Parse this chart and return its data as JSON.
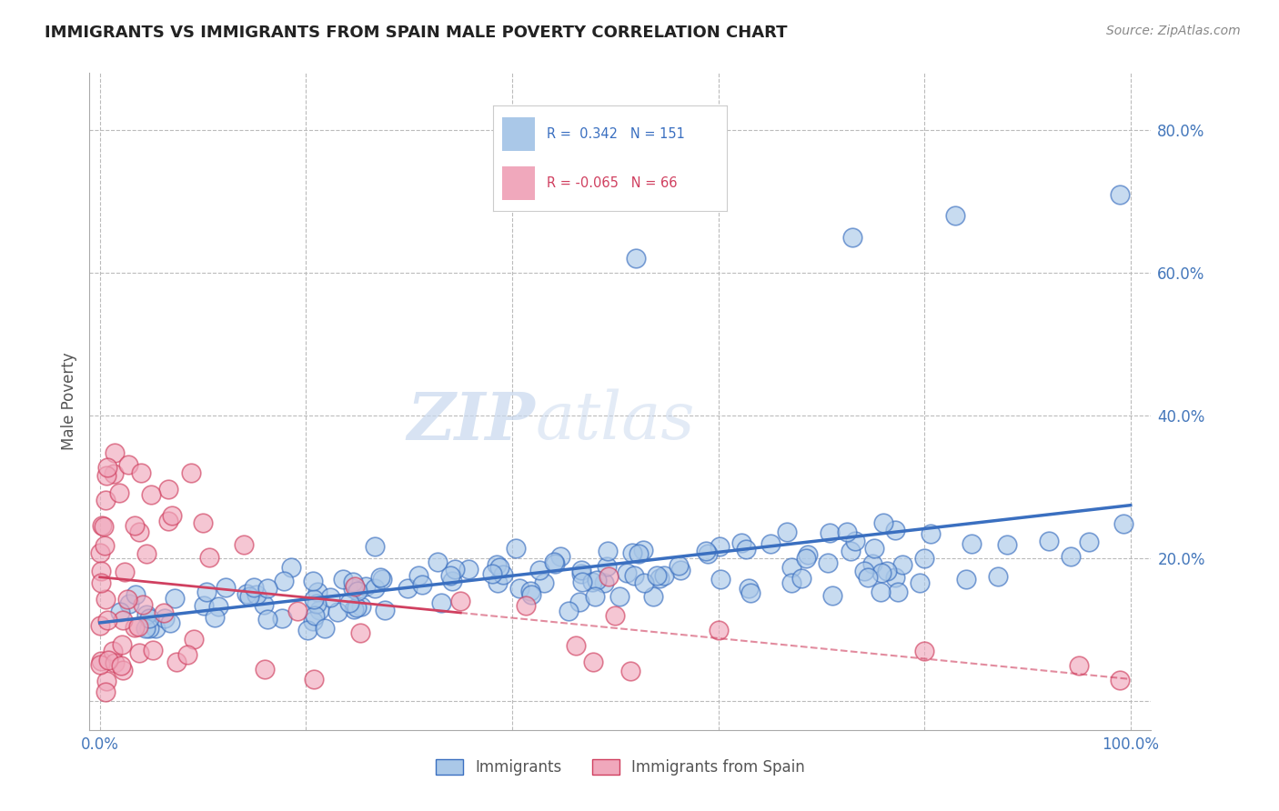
{
  "title": "IMMIGRANTS VS IMMIGRANTS FROM SPAIN MALE POVERTY CORRELATION CHART",
  "source": "Source: ZipAtlas.com",
  "ylabel": "Male Poverty",
  "xlim": [
    -0.01,
    1.02
  ],
  "ylim": [
    -0.04,
    0.88
  ],
  "xtick_positions": [
    0.0,
    0.2,
    0.4,
    0.6,
    0.8,
    1.0
  ],
  "xticklabels": [
    "0.0%",
    "",
    "",
    "",
    "",
    "100.0%"
  ],
  "ytick_positions": [
    0.0,
    0.2,
    0.4,
    0.6,
    0.8
  ],
  "yticklabels": [
    "",
    "20.0%",
    "40.0%",
    "60.0%",
    "80.0%"
  ],
  "blue_R": 0.342,
  "blue_N": 151,
  "pink_R": -0.065,
  "pink_N": 66,
  "blue_color": "#aac8e8",
  "pink_color": "#f0a8bc",
  "blue_line_color": "#3a6fc0",
  "pink_line_color": "#d04060",
  "legend_label_blue": "Immigrants",
  "legend_label_pink": "Immigrants from Spain",
  "background_color": "#ffffff",
  "grid_color": "#bbbbbb"
}
